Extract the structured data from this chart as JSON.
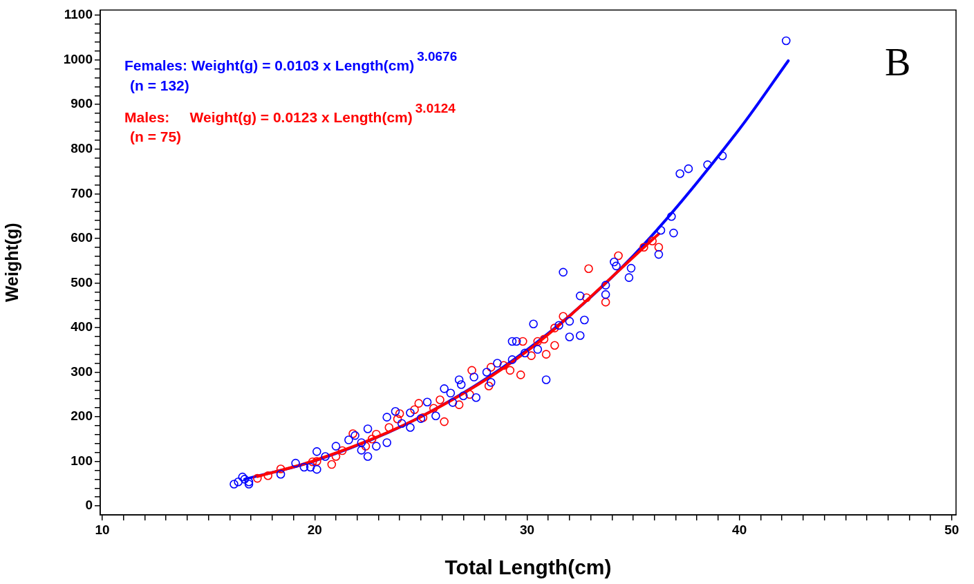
{
  "chart_data": {
    "type": "scatter",
    "xlabel": "Total Length(cm)",
    "ylabel": "Weight(g)",
    "xlim": [
      9.9,
      50.2
    ],
    "xticks": [
      10,
      {
        "value": 11,
        "label": null
      },
      {
        "value": 12,
        "label": null
      },
      {
        "value": 13,
        "label": null
      },
      {
        "value": 14,
        "label": null
      },
      {
        "value": 15,
        "label": null
      },
      {
        "value": 16,
        "label": null
      },
      {
        "value": 17,
        "label": null
      },
      {
        "value": 18,
        "label": null
      },
      {
        "value": 19,
        "label": null
      },
      20,
      {
        "value": 21,
        "label": null
      },
      {
        "value": 22,
        "label": null
      },
      {
        "value": 23,
        "label": null
      },
      {
        "value": 24,
        "label": null
      },
      {
        "value": 25,
        "label": null
      },
      {
        "value": 26,
        "label": null
      },
      {
        "value": 27,
        "label": null
      },
      {
        "value": 28,
        "label": null
      },
      {
        "value": 29,
        "label": null
      },
      30,
      {
        "value": 31,
        "label": null
      },
      {
        "value": 32,
        "label": null
      },
      {
        "value": 33,
        "label": null
      },
      {
        "value": 34,
        "label": null
      },
      {
        "value": 35,
        "label": null
      },
      {
        "value": 36,
        "label": null
      },
      {
        "value": 37,
        "label": null
      },
      {
        "value": 38,
        "label": null
      },
      {
        "value": 39,
        "label": null
      },
      40,
      {
        "value": 41,
        "label": null
      },
      {
        "value": 42,
        "label": null
      },
      {
        "value": 43,
        "label": null
      },
      {
        "value": 44,
        "label": null
      },
      {
        "value": 45,
        "label": null
      },
      {
        "value": 46,
        "label": null
      },
      {
        "value": 47,
        "label": null
      },
      {
        "value": 48,
        "label": null
      },
      {
        "value": 49,
        "label": null
      },
      50
    ],
    "ylim": [
      -20,
      1112
    ],
    "yticks": [
      0,
      {
        "value": 20,
        "label": null
      },
      {
        "value": 40,
        "label": null
      },
      {
        "value": 60,
        "label": null
      },
      {
        "value": 80,
        "label": null
      },
      100,
      {
        "value": 120,
        "label": null
      },
      {
        "value": 140,
        "label": null
      },
      {
        "value": 160,
        "label": null
      },
      {
        "value": 180,
        "label": null
      },
      200,
      {
        "value": 220,
        "label": null
      },
      {
        "value": 240,
        "label": null
      },
      {
        "value": 260,
        "label": null
      },
      {
        "value": 280,
        "label": null
      },
      300,
      {
        "value": 320,
        "label": null
      },
      {
        "value": 340,
        "label": null
      },
      {
        "value": 360,
        "label": null
      },
      {
        "value": 380,
        "label": null
      },
      400,
      {
        "value": 420,
        "label": null
      },
      {
        "value": 440,
        "label": null
      },
      {
        "value": 460,
        "label": null
      },
      {
        "value": 480,
        "label": null
      },
      500,
      {
        "value": 520,
        "label": null
      },
      {
        "value": 540,
        "label": null
      },
      {
        "value": 560,
        "label": null
      },
      {
        "value": 580,
        "label": null
      },
      600,
      {
        "value": 620,
        "label": null
      },
      {
        "value": 640,
        "label": null
      },
      {
        "value": 660,
        "label": null
      },
      {
        "value": 680,
        "label": null
      },
      700,
      {
        "value": 720,
        "label": null
      },
      {
        "value": 740,
        "label": null
      },
      {
        "value": 760,
        "label": null
      },
      {
        "value": 780,
        "label": null
      },
      800,
      {
        "value": 820,
        "label": null
      },
      {
        "value": 840,
        "label": null
      },
      {
        "value": 860,
        "label": null
      },
      {
        "value": 880,
        "label": null
      },
      900,
      {
        "value": 920,
        "label": null
      },
      {
        "value": 940,
        "label": null
      },
      {
        "value": 960,
        "label": null
      },
      {
        "value": 980,
        "label": null
      },
      1000,
      {
        "value": 1020,
        "label": null
      },
      {
        "value": 1040,
        "label": null
      },
      {
        "value": 1060,
        "label": null
      },
      {
        "value": 1080,
        "label": null
      },
      1100
    ],
    "grid": false,
    "legend": false,
    "series": [
      {
        "marker": "circle",
        "color": "#0000ff",
        "x": [
          16.2,
          16.4,
          16.6,
          16.7,
          16.9,
          16.9,
          18.4,
          19.1,
          19.5,
          19.8,
          20.1,
          20.1,
          20.5,
          21.0,
          21.6,
          21.9,
          22.2,
          22.2,
          22.5,
          22.5,
          22.9,
          23.4,
          23.4,
          23.8,
          24.1,
          24.5,
          24.5,
          25.0,
          25.3,
          25.7,
          26.1,
          26.4,
          26.5,
          26.8,
          26.9,
          27.0,
          27.5,
          27.6,
          28.1,
          28.3,
          28.6,
          29.3,
          29.5,
          29.3,
          29.9,
          30.3,
          30.5,
          30.9,
          31.5,
          31.7,
          32.0,
          32.0,
          32.5,
          32.7,
          32.5,
          33.7,
          33.7,
          34.1,
          34.2,
          34.8,
          34.9,
          36.2,
          36.3,
          36.8,
          36.9,
          37.2,
          37.6,
          38.5,
          39.2,
          42.2
        ],
        "values": [
          49,
          54,
          65,
          60,
          54,
          49,
          71,
          96,
          87,
          87,
          122,
          82,
          111,
          134,
          148,
          158,
          125,
          142,
          111,
          173,
          134,
          199,
          142,
          212,
          185,
          209,
          176,
          196,
          233,
          202,
          263,
          253,
          232,
          283,
          272,
          247,
          289,
          243,
          300,
          277,
          320,
          369,
          369,
          328,
          343,
          408,
          351,
          283,
          405,
          524,
          414,
          379,
          382,
          417,
          471,
          495,
          474,
          547,
          538,
          512,
          533,
          564,
          618,
          649,
          612,
          745,
          756,
          765,
          785,
          1043
        ]
      },
      {
        "marker": "circle",
        "color": "#ff0000",
        "x": [
          17.3,
          17.8,
          18.4,
          19.9,
          20.1,
          20.8,
          21.0,
          21.3,
          21.8,
          22.4,
          22.7,
          22.9,
          23.5,
          23.9,
          24.0,
          24.7,
          24.9,
          25.1,
          25.6,
          25.9,
          26.1,
          26.8,
          27.3,
          27.4,
          28.2,
          28.3,
          28.9,
          29.2,
          29.7,
          29.8,
          30.2,
          30.5,
          30.8,
          30.9,
          31.3,
          31.3,
          31.7,
          32.8,
          32.9,
          33.7,
          34.3,
          35.5,
          35.9,
          36.2
        ],
        "values": [
          62,
          68,
          83,
          99,
          100,
          93,
          111,
          124,
          162,
          134,
          150,
          161,
          176,
          195,
          207,
          216,
          230,
          198,
          219,
          238,
          189,
          227,
          250,
          304,
          269,
          311,
          315,
          304,
          294,
          369,
          337,
          369,
          374,
          340,
          360,
          399,
          425,
          467,
          532,
          457,
          561,
          580,
          594,
          580
        ]
      },
      {
        "type": "line",
        "marker": "none",
        "color": "#0000ff",
        "x": [
          16.7,
          20,
          25,
          30,
          35,
          40,
          42.3
        ],
        "values": [
          60,
          101,
          200,
          350,
          561,
          845,
          998
        ]
      },
      {
        "type": "line",
        "marker": "none",
        "color": "#ff0000",
        "x": [
          17.3,
          20,
          25,
          30,
          36.2
        ],
        "values": [
          66,
          102,
          200,
          347,
          610
        ]
      }
    ],
    "annotations": [
      "Females: Weight(g) = 0.0103 x Length(cm)$^{3.0676}$",
      "(n = 132)",
      "Males:     Weight(g) = 0.0123 x Length(cm)$^{3.0124}$",
      "(n = 75)",
      "B"
    ]
  }
}
